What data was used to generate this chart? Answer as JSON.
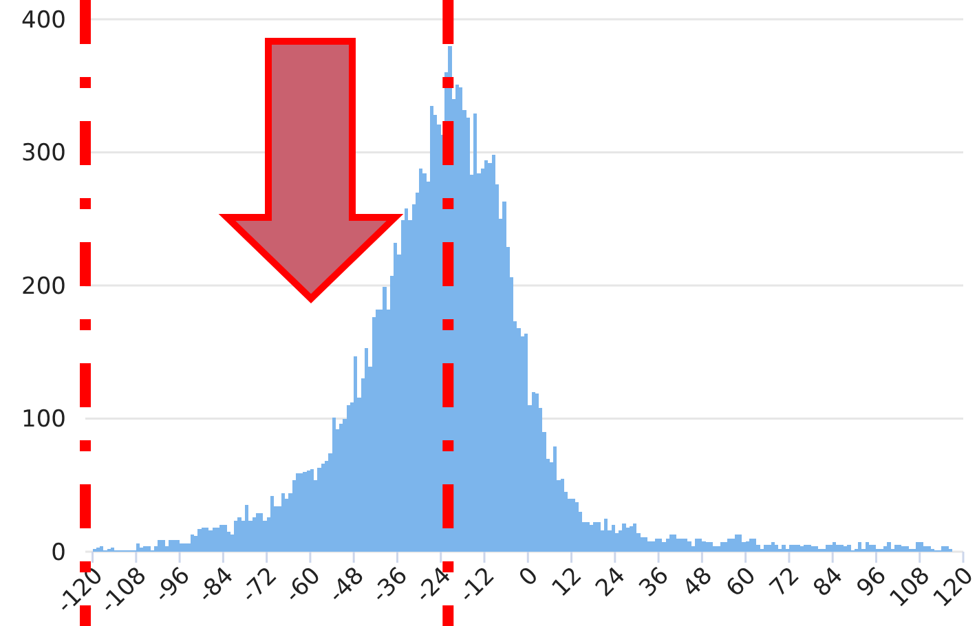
{
  "chart_data": {
    "type": "histogram",
    "bins": [
      -120,
      -119,
      -118,
      -117,
      -116,
      -115,
      -114,
      -113,
      -112,
      -111,
      -110,
      -109,
      -108,
      -107,
      -106,
      -105,
      -104,
      -103,
      -102,
      -101,
      -100,
      -99,
      -98,
      -97,
      -96,
      -95,
      -94,
      -93,
      -92,
      -91,
      -90,
      -89,
      -88,
      -87,
      -86,
      -85,
      -84,
      -83,
      -82,
      -81,
      -80,
      -79,
      -78,
      -77,
      -76,
      -75,
      -74,
      -73,
      -72,
      -71,
      -70,
      -69,
      -68,
      -67,
      -66,
      -65,
      -64,
      -63,
      -62,
      -61,
      -60,
      -59,
      -58,
      -57,
      -56,
      -55,
      -54,
      -53,
      -52,
      -51,
      -50,
      -49,
      -48,
      -47,
      -46,
      -45,
      -44,
      -43,
      -42,
      -41,
      -40,
      -39,
      -38,
      -37,
      -36,
      -35,
      -34,
      -33,
      -32,
      -31,
      -30,
      -29,
      -28,
      -27,
      -26,
      -25,
      -24,
      -23,
      -22,
      -21,
      -20,
      -19,
      -18,
      -17,
      -16,
      -15,
      -14,
      -13,
      -12,
      -11,
      -10,
      -9,
      -8,
      -7,
      -6,
      -5,
      -4,
      -3,
      -2,
      -1,
      0,
      1,
      2,
      3,
      4,
      5,
      6,
      7,
      8,
      9,
      10,
      11,
      12,
      13,
      14,
      15,
      16,
      17,
      18,
      19,
      20,
      21,
      22,
      23,
      24,
      25,
      26,
      27,
      28,
      29,
      30,
      31,
      32,
      33,
      34,
      35,
      36,
      37,
      38,
      39,
      40,
      41,
      42,
      43,
      44,
      45,
      46,
      47,
      48,
      49,
      50,
      51,
      52,
      53,
      54,
      55,
      56,
      57,
      58,
      59,
      60,
      61,
      62,
      63,
      64,
      65,
      66,
      67,
      68,
      69,
      70,
      71,
      72,
      73,
      74,
      75,
      76,
      77,
      78,
      79,
      80,
      81,
      82,
      83,
      84,
      85,
      86,
      87,
      88,
      89,
      90,
      91,
      92,
      93,
      94,
      95,
      96,
      97,
      98,
      99,
      100,
      101,
      102,
      103,
      104,
      105,
      106,
      107,
      108,
      109,
      110,
      111,
      112,
      113,
      114,
      115,
      116,
      117
    ],
    "values": [
      2,
      3,
      4,
      1,
      2,
      3,
      1,
      1,
      1,
      1,
      1,
      1,
      6,
      3,
      4,
      4,
      1,
      4,
      9,
      9,
      4,
      9,
      9,
      9,
      6,
      6,
      6,
      13,
      12,
      17,
      18,
      18,
      16,
      18,
      18,
      20,
      20,
      15,
      13,
      23,
      26,
      23,
      35,
      23,
      26,
      29,
      29,
      23,
      26,
      42,
      34,
      34,
      44,
      40,
      44,
      54,
      59,
      59,
      60,
      61,
      62,
      54,
      63,
      66,
      68,
      74,
      101,
      92,
      96,
      100,
      110,
      112,
      147,
      116,
      130,
      153,
      139,
      176,
      182,
      182,
      199,
      182,
      207,
      232,
      223,
      249,
      258,
      249,
      261,
      270,
      288,
      284,
      278,
      335,
      328,
      321,
      313,
      360,
      380,
      340,
      351,
      349,
      332,
      326,
      283,
      329,
      284,
      288,
      294,
      292,
      298,
      276,
      250,
      263,
      229,
      206,
      173,
      168,
      162,
      164,
      110,
      120,
      119,
      108,
      90,
      70,
      67,
      79,
      54,
      55,
      45,
      40,
      40,
      37,
      30,
      22,
      22,
      20,
      22,
      22,
      16,
      25,
      16,
      20,
      14,
      16,
      21,
      18,
      19,
      21,
      14,
      11,
      11,
      8,
      8,
      10,
      10,
      7,
      10,
      13,
      13,
      10,
      10,
      10,
      8,
      4,
      10,
      10,
      8,
      7,
      7,
      4,
      4,
      7,
      7,
      10,
      10,
      13,
      13,
      7,
      8,
      10,
      10,
      5,
      2,
      5,
      5,
      7,
      5,
      2,
      5,
      2,
      5,
      5,
      5,
      4,
      5,
      5,
      4,
      4,
      2,
      2,
      5,
      5,
      7,
      5,
      5,
      4,
      5,
      1,
      2,
      7,
      2,
      7,
      5,
      5,
      2,
      2,
      4,
      7,
      2,
      5,
      5,
      4,
      4,
      2,
      2,
      7,
      7,
      4,
      4,
      2,
      1,
      1,
      4,
      4,
      2
    ],
    "color": "#7cb5ec",
    "xlim": [
      -122,
      120
    ],
    "xticks": [
      -120,
      -108,
      -96,
      -84,
      -72,
      -60,
      -48,
      -36,
      -24,
      -12,
      0,
      12,
      24,
      36,
      48,
      60,
      72,
      84,
      96,
      108,
      120
    ],
    "ylim": [
      0,
      400
    ],
    "yticks": [
      0,
      100,
      200,
      300,
      400
    ],
    "grid": "y",
    "ref_lines": [
      {
        "axis": "x",
        "value": -122,
        "color": "#ff0000",
        "line_style": "dashed"
      },
      {
        "axis": "x",
        "value": -22,
        "color": "#ff0000",
        "line_style": "dashed"
      }
    ]
  }
}
